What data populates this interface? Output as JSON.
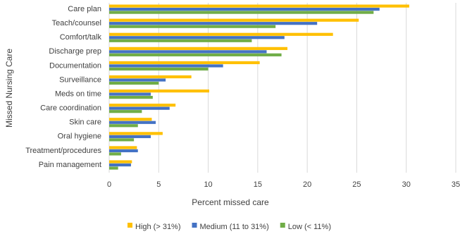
{
  "chart_data": {
    "type": "bar",
    "orientation": "horizontal",
    "title": "",
    "xlabel": "Percent missed care",
    "ylabel": "Missed Nursing Care",
    "xlim": [
      0,
      35
    ],
    "xticks": [
      0,
      5,
      10,
      15,
      20,
      25,
      30,
      35
    ],
    "grid": true,
    "legend_position": "bottom",
    "categories": [
      "Care plan",
      "Teach/counsel",
      "Comfort/talk",
      "Discharge prep",
      "Documentation",
      "Surveillance",
      "Meds on time",
      "Care coordination",
      "Skin care",
      "Oral hygiene",
      "Treatment/procedures",
      "Pain management"
    ],
    "series": [
      {
        "name": "High (> 31%)",
        "color": "#FFC000",
        "values": [
          30.3,
          25.2,
          22.6,
          18.0,
          15.2,
          8.3,
          10.1,
          6.7,
          4.3,
          5.4,
          2.8,
          2.3
        ]
      },
      {
        "name": "Medium (11 to 31%)",
        "color": "#4472C4",
        "values": [
          27.3,
          21.0,
          17.7,
          15.9,
          11.5,
          5.7,
          4.2,
          6.1,
          4.7,
          4.2,
          2.9,
          2.2
        ]
      },
      {
        "name": "Low (< 11%)",
        "color": "#70AD47",
        "values": [
          26.7,
          16.8,
          14.4,
          17.4,
          10.0,
          5.0,
          4.4,
          3.3,
          2.9,
          2.5,
          1.2,
          0.9
        ]
      }
    ]
  }
}
